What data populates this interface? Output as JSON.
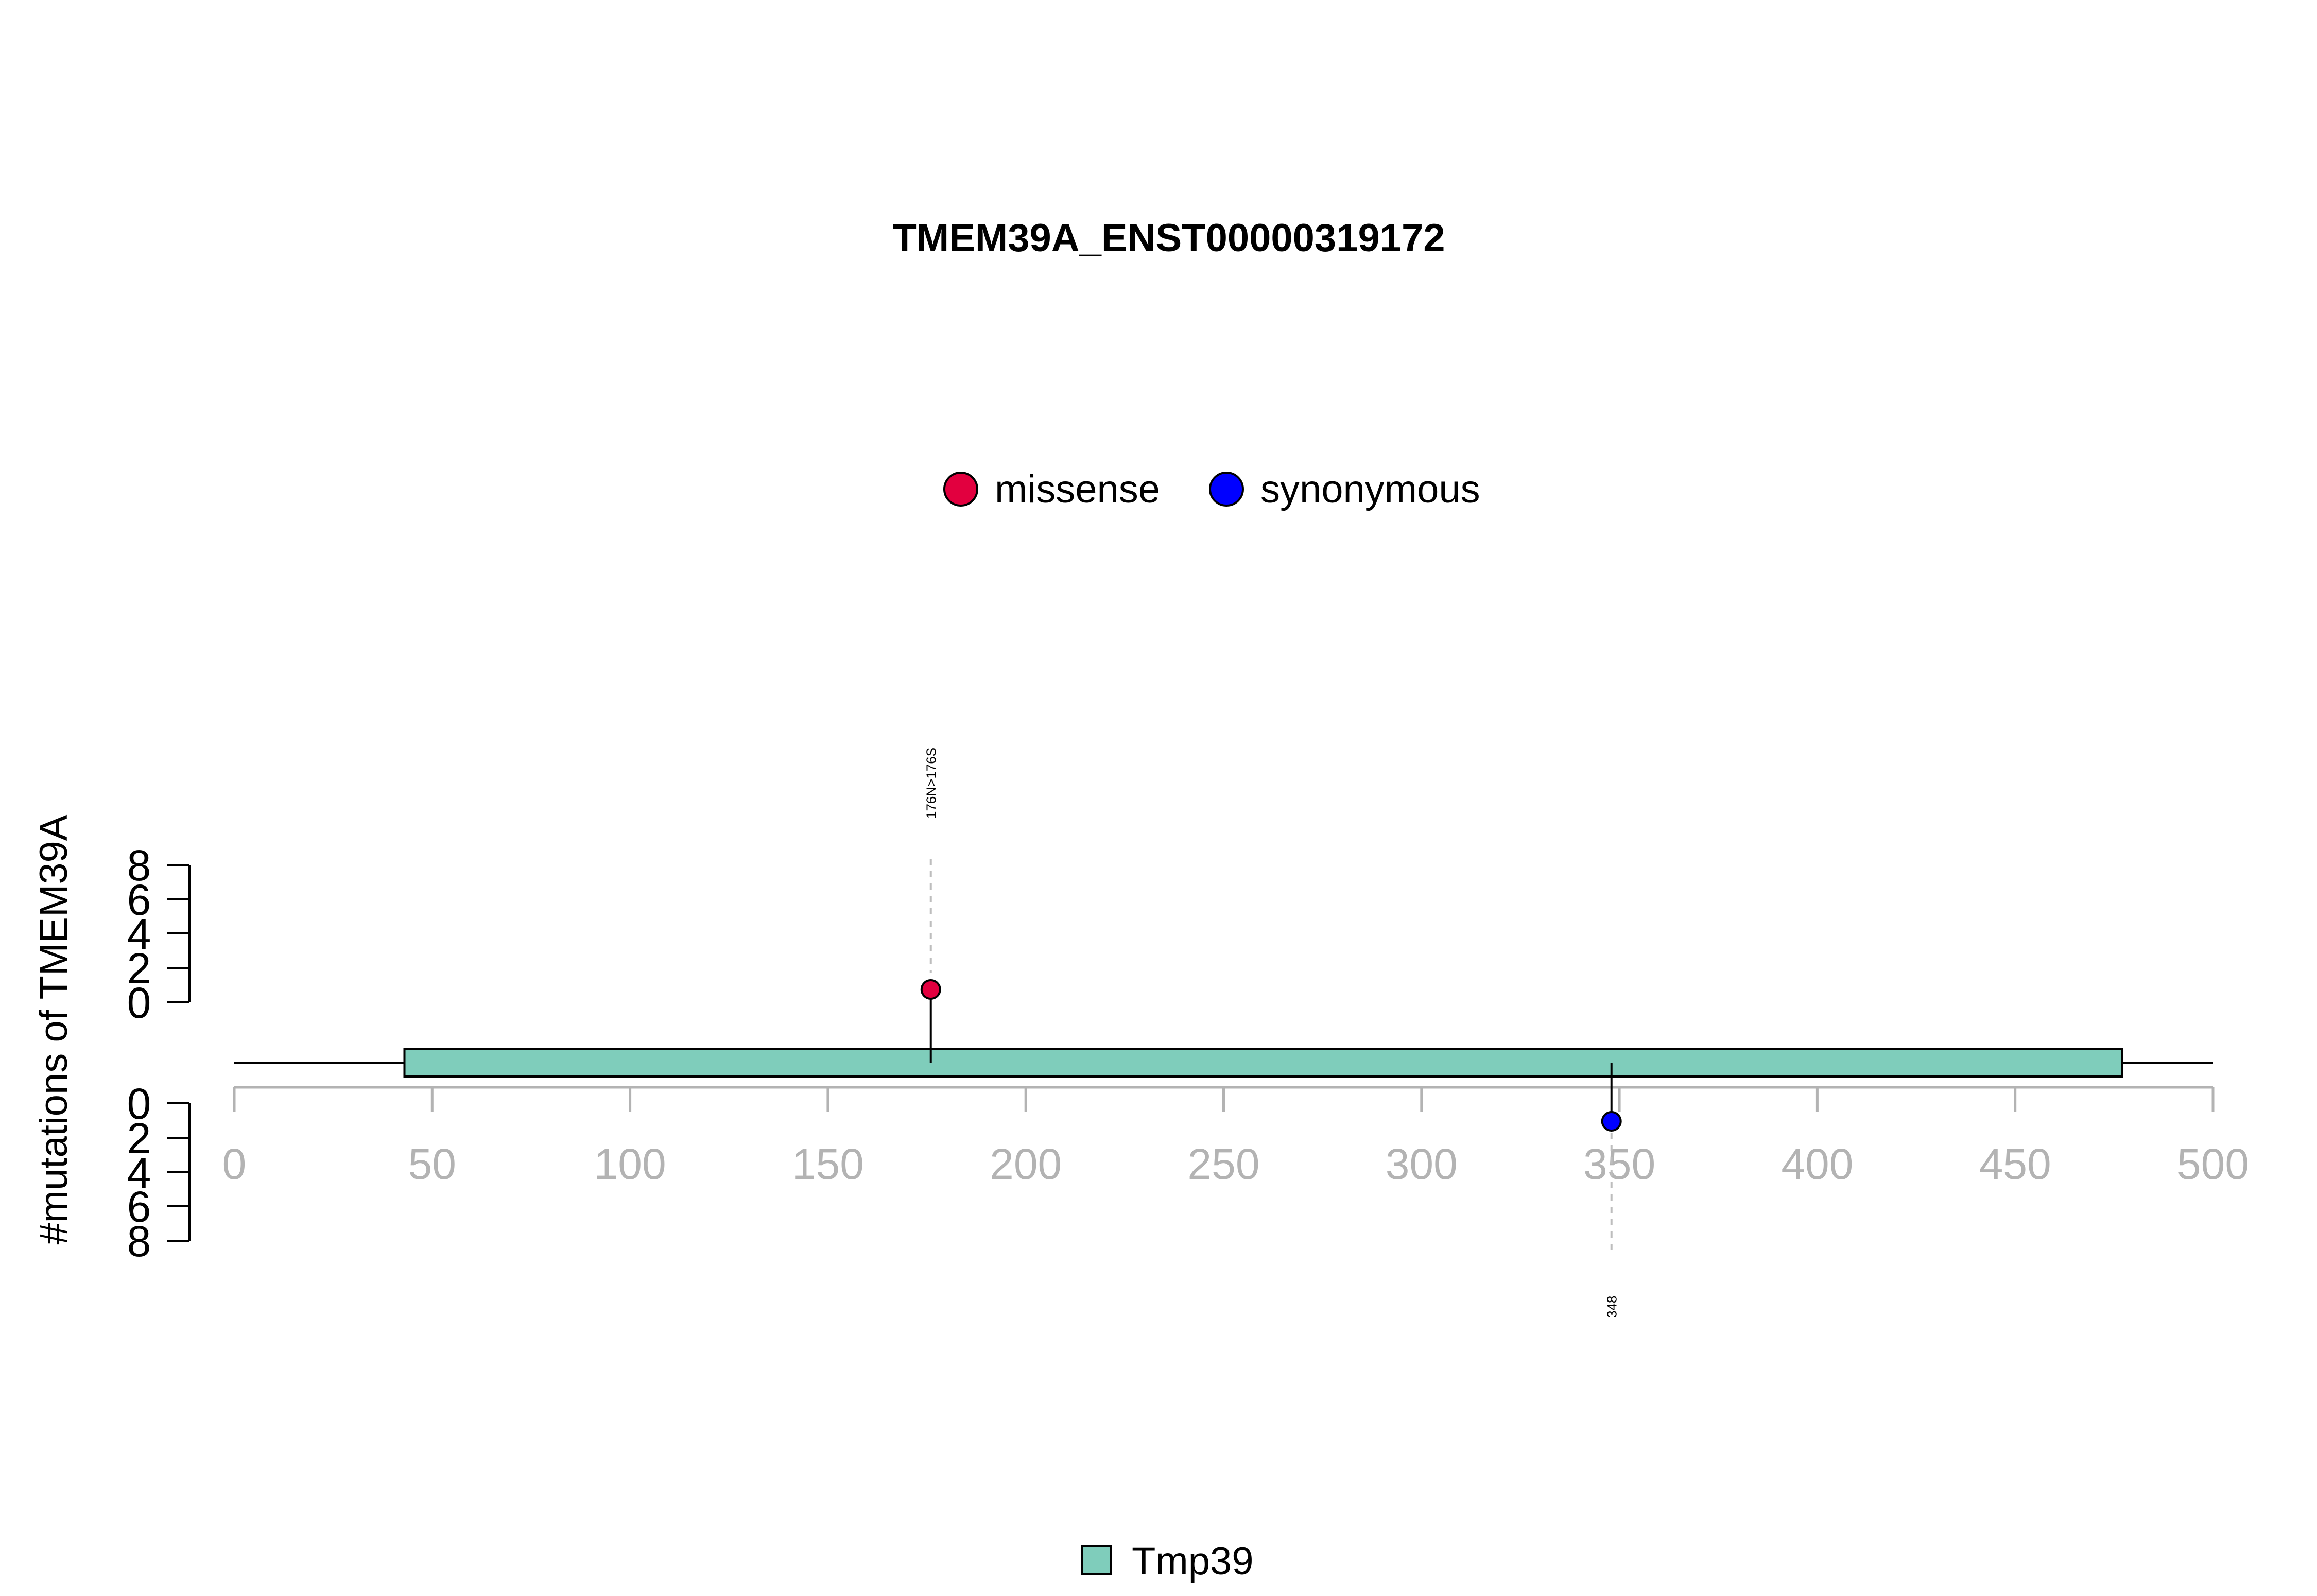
{
  "chart_data": {
    "type": "lollipop",
    "title": "TMEM39A_ENST00000319172",
    "ylabel": "#mutations of TMEM39A",
    "xlim": [
      0,
      500
    ],
    "x_ticks": [
      "0",
      "50",
      "100",
      "150",
      "200",
      "250",
      "300",
      "350",
      "400",
      "450",
      "500"
    ],
    "y_ticks_top": [
      "8",
      "6",
      "4",
      "2",
      "0"
    ],
    "y_ticks_bottom": [
      "0",
      "2",
      "4",
      "6",
      "8"
    ],
    "legend": [
      {
        "label": "missense",
        "color": "#e2003f"
      },
      {
        "label": "synonymous",
        "color": "#0000ff"
      }
    ],
    "domains": [
      {
        "name": "Tmp39",
        "start": 43,
        "end": 477,
        "color": "#7fcdbb"
      }
    ],
    "domain_legend_label": "Tmp39",
    "mutations": [
      {
        "position": 176,
        "count": 1,
        "type": "missense",
        "label": "176N>176S",
        "side": "top",
        "color": "#e2003f"
      },
      {
        "position": 348,
        "count": 1,
        "type": "synonymous",
        "label": "348",
        "side": "bottom",
        "color": "#0000ff"
      }
    ],
    "colors": {
      "axis_gray": "#b3b3b3",
      "guide": "#bdbdbd",
      "outline": "#000000"
    }
  }
}
